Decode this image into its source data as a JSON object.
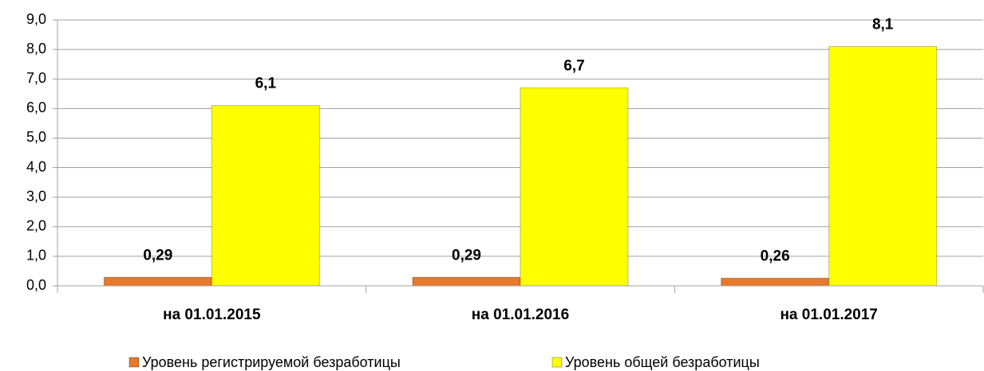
{
  "chart_data": {
    "type": "bar",
    "categories": [
      "на 01.01.2015",
      "на 01.01.2016",
      "на 01.01.2017"
    ],
    "series": [
      {
        "name": "Уровень регистрируемой безработицы",
        "color": "#e8782a",
        "values": [
          0.29,
          0.29,
          0.26
        ],
        "value_labels": [
          "0,29",
          "0,29",
          "0,26"
        ]
      },
      {
        "name": "Уровень общей безработицы",
        "color": "#ffff00",
        "values": [
          6.1,
          6.7,
          8.1
        ],
        "value_labels": [
          "6,1",
          "6,7",
          "8,1"
        ]
      }
    ],
    "ylim": [
      0,
      9
    ],
    "yticks": [
      {
        "value": 0,
        "label": "0,0"
      },
      {
        "value": 1,
        "label": "1,0"
      },
      {
        "value": 2,
        "label": "2,0"
      },
      {
        "value": 3,
        "label": "3,0"
      },
      {
        "value": 4,
        "label": "4,0"
      },
      {
        "value": 5,
        "label": "5,0"
      },
      {
        "value": 6,
        "label": "6,0"
      },
      {
        "value": 7,
        "label": "7,0"
      },
      {
        "value": 8,
        "label": "8,0"
      },
      {
        "value": 9,
        "label": "9,0"
      }
    ],
    "grid": true,
    "legend": "bottom"
  }
}
